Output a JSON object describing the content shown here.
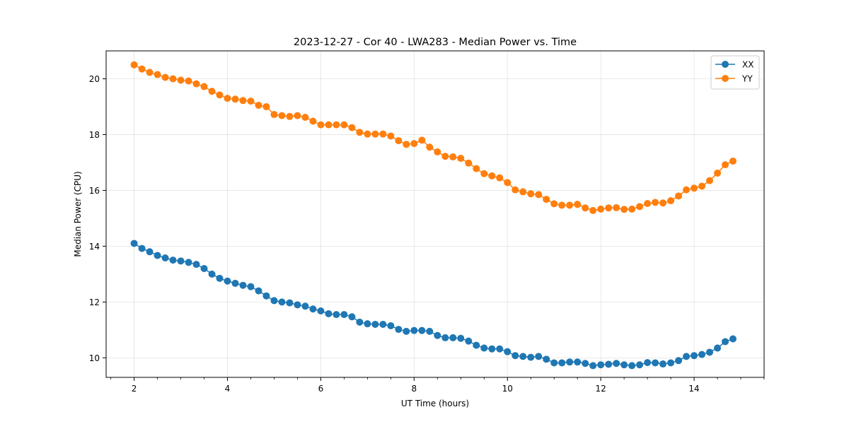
{
  "chart_data": {
    "type": "line",
    "title": "2023-12-27 - Cor 40 - LWA283 - Median Power vs. Time",
    "xlabel": "UT Time (hours)",
    "ylabel": "Median Power (CPU)",
    "xlim": [
      1.4,
      15.5
    ],
    "ylim": [
      9.3,
      21.0
    ],
    "xticks": [
      2,
      4,
      6,
      8,
      10,
      12,
      14
    ],
    "yticks": [
      10,
      12,
      14,
      16,
      18,
      20
    ],
    "grid": true,
    "legend_position": "top-right",
    "x": [
      2.0,
      2.167,
      2.333,
      2.5,
      2.667,
      2.833,
      3.0,
      3.167,
      3.333,
      3.5,
      3.667,
      3.833,
      4.0,
      4.167,
      4.333,
      4.5,
      4.667,
      4.833,
      5.0,
      5.167,
      5.333,
      5.5,
      5.667,
      5.833,
      6.0,
      6.167,
      6.333,
      6.5,
      6.667,
      6.833,
      7.0,
      7.167,
      7.333,
      7.5,
      7.667,
      7.833,
      8.0,
      8.167,
      8.333,
      8.5,
      8.667,
      8.833,
      9.0,
      9.167,
      9.333,
      9.5,
      9.667,
      9.833,
      10.0,
      10.167,
      10.333,
      10.5,
      10.667,
      10.833,
      11.0,
      11.167,
      11.333,
      11.5,
      11.667,
      11.833,
      12.0,
      12.167,
      12.333,
      12.5,
      12.667,
      12.833,
      13.0,
      13.167,
      13.333,
      13.5,
      13.667,
      13.833,
      14.0,
      14.167,
      14.333,
      14.5,
      14.667,
      14.833
    ],
    "series": [
      {
        "name": "XX",
        "color": "#1f77b4",
        "values": [
          14.1,
          13.92,
          13.8,
          13.67,
          13.58,
          13.5,
          13.47,
          13.42,
          13.35,
          13.2,
          13.0,
          12.85,
          12.75,
          12.67,
          12.6,
          12.55,
          12.4,
          12.22,
          12.05,
          12.0,
          11.97,
          11.9,
          11.85,
          11.75,
          11.68,
          11.58,
          11.55,
          11.55,
          11.47,
          11.28,
          11.22,
          11.2,
          11.2,
          11.15,
          11.02,
          10.95,
          10.98,
          10.98,
          10.95,
          10.8,
          10.72,
          10.72,
          10.7,
          10.6,
          10.45,
          10.35,
          10.32,
          10.32,
          10.22,
          10.08,
          10.05,
          10.02,
          10.05,
          9.95,
          9.82,
          9.82,
          9.85,
          9.85,
          9.8,
          9.72,
          9.75,
          9.77,
          9.8,
          9.75,
          9.72,
          9.75,
          9.83,
          9.82,
          9.78,
          9.82,
          9.9,
          10.05,
          10.08,
          10.12,
          10.2,
          10.35,
          10.58,
          10.68
        ]
      },
      {
        "name": "YY",
        "color": "#ff7f0e",
        "values": [
          20.5,
          20.35,
          20.23,
          20.15,
          20.05,
          20.0,
          19.95,
          19.92,
          19.82,
          19.72,
          19.55,
          19.42,
          19.3,
          19.27,
          19.22,
          19.2,
          19.05,
          19.0,
          18.72,
          18.68,
          18.65,
          18.68,
          18.62,
          18.48,
          18.35,
          18.35,
          18.35,
          18.35,
          18.25,
          18.08,
          18.02,
          18.02,
          18.02,
          17.95,
          17.78,
          17.65,
          17.68,
          17.8,
          17.55,
          17.38,
          17.22,
          17.2,
          17.15,
          16.98,
          16.78,
          16.6,
          16.52,
          16.45,
          16.28,
          16.02,
          15.95,
          15.88,
          15.85,
          15.68,
          15.52,
          15.47,
          15.47,
          15.5,
          15.37,
          15.28,
          15.33,
          15.37,
          15.38,
          15.32,
          15.33,
          15.42,
          15.53,
          15.57,
          15.55,
          15.63,
          15.8,
          16.02,
          16.08,
          16.15,
          16.35,
          16.62,
          16.92,
          17.05
        ]
      }
    ]
  }
}
